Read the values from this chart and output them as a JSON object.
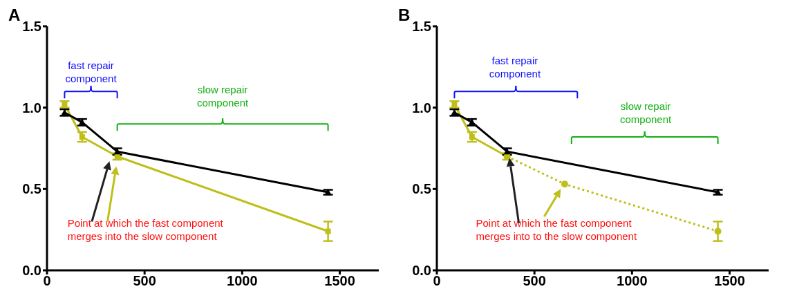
{
  "chart_data": [
    {
      "type": "line",
      "title": "A",
      "xlim": [
        0,
        1700
      ],
      "xticks": [
        0,
        500,
        1000,
        1500
      ],
      "ylim": [
        0,
        1.5
      ],
      "yticks": [
        {
          "value": 0,
          "label": "0.0"
        },
        {
          "value": 0.5,
          "label": "0.5"
        },
        {
          "value": 1,
          "label": "1.0"
        },
        {
          "value": 1.5,
          "label": "1.5"
        }
      ],
      "line_style": "solid",
      "series": [
        {
          "color": "#bfbf1a",
          "x": [
            90,
            180,
            360,
            1440
          ],
          "values": [
            1.02,
            0.82,
            0.7,
            0.24
          ],
          "errors": [
            0.02,
            0.03,
            0.02,
            0.06
          ],
          "marker": "square"
        },
        {
          "color": "#000000",
          "x": [
            90,
            180,
            360,
            1440
          ],
          "values": [
            0.97,
            0.91,
            0.73,
            0.48
          ],
          "errors": [
            0.02,
            0.02,
            0.02,
            0.015
          ],
          "marker": "triangle"
        }
      ],
      "annotations": [
        "fast repair component",
        "slow repair component",
        "Point at which the fast component merges into the slow component"
      ]
    },
    {
      "type": "line",
      "title": "B",
      "xlim": [
        0,
        1700
      ],
      "xticks": [
        0,
        500,
        1000,
        1500
      ],
      "ylim": [
        0,
        1.5
      ],
      "yticks": [
        {
          "value": 0,
          "label": "0.0"
        },
        {
          "value": 0.5,
          "label": "0.5"
        },
        {
          "value": 1,
          "label": "1.0"
        },
        {
          "value": 1.5,
          "label": "1.5"
        }
      ],
      "line_style": "solid",
      "series": [
        {
          "color": "#bfbf1a",
          "x": [
            360,
            655,
            1440
          ],
          "values": [
            0.7,
            0.53,
            0.24
          ],
          "errors": [
            null,
            null,
            0.06
          ],
          "marker": "circle",
          "line_style": "dotted"
        },
        {
          "color": "#bfbf1a",
          "x": [
            90,
            180,
            360
          ],
          "values": [
            1.02,
            0.82,
            0.7
          ],
          "errors": [
            0.02,
            0.03,
            0.02
          ],
          "marker": "square"
        },
        {
          "color": "#000000",
          "x": [
            90,
            180,
            360,
            1440
          ],
          "values": [
            0.97,
            0.91,
            0.73,
            0.48
          ],
          "errors": [
            0.02,
            0.02,
            0.02,
            0.015
          ],
          "marker": "triangle"
        }
      ],
      "annotations": [
        "fast repair component",
        "slow repair component",
        "Point at which the fast component merges into to the slow component"
      ]
    }
  ]
}
